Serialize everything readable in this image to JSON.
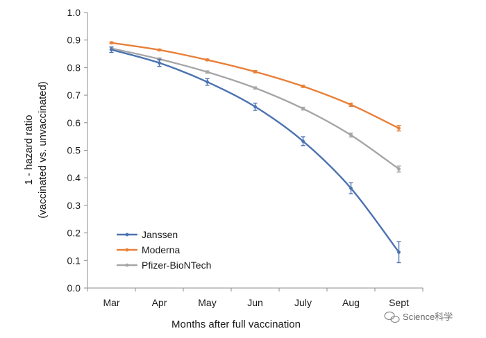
{
  "chart_data": {
    "type": "line",
    "categories": [
      "Mar",
      "Apr",
      "May",
      "Jun",
      "July",
      "Aug",
      "Sept"
    ],
    "xlabel": "Months after full vaccination",
    "ylabel_line1": "1 - hazard ratio",
    "ylabel_line2": "(vaccinated vs. unvaccinated)",
    "ylim": [
      0,
      1.0
    ],
    "yticks": [
      "0.0",
      "0.1",
      "0.2",
      "0.3",
      "0.4",
      "0.5",
      "0.6",
      "0.7",
      "0.8",
      "0.9",
      "1.0"
    ],
    "grid": false,
    "legend_position": "bottom-left",
    "series": [
      {
        "name": "Janssen",
        "color": "#4a72b0",
        "values": [
          0.865,
          0.817,
          0.748,
          0.658,
          0.533,
          0.362,
          0.13
        ],
        "error": [
          0.01,
          0.013,
          0.012,
          0.013,
          0.016,
          0.02,
          0.038
        ]
      },
      {
        "name": "Moderna",
        "color": "#e8803a",
        "values": [
          0.89,
          0.864,
          0.828,
          0.785,
          0.732,
          0.665,
          0.58
        ],
        "error": [
          0.003,
          0.003,
          0.003,
          0.004,
          0.004,
          0.006,
          0.01
        ]
      },
      {
        "name": "Pfizer-BioNTech",
        "color": "#a6a6a6",
        "values": [
          0.87,
          0.831,
          0.784,
          0.726,
          0.651,
          0.555,
          0.432
        ],
        "error": [
          0.004,
          0.004,
          0.004,
          0.004,
          0.005,
          0.007,
          0.011
        ]
      }
    ]
  },
  "watermark": {
    "text": "Science科学"
  }
}
